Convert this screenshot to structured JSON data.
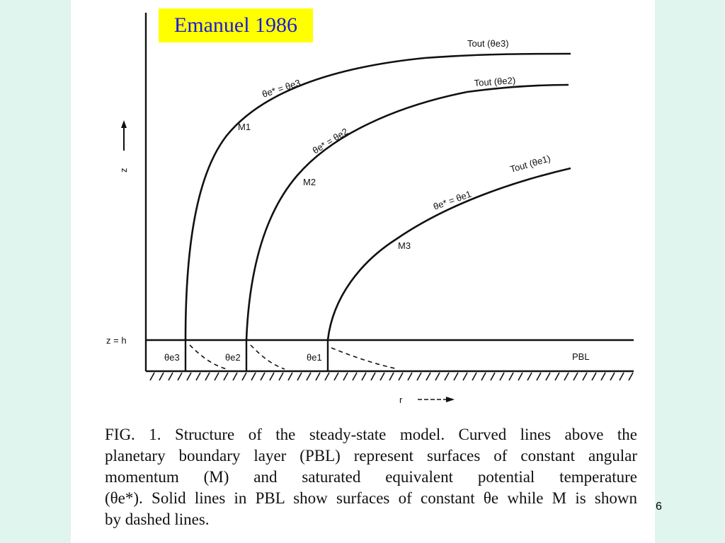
{
  "slide": {
    "title": "Emanuel 1986",
    "page_number": "6"
  },
  "figure": {
    "z_axis_label": "z",
    "r_axis_label": "r",
    "pbl_top_label": "z = h",
    "pbl_label": "PBL",
    "curve_labels": {
      "tout_e3": "Tout (θe3)",
      "tout_e2": "Tout (θe2)",
      "tout_e1": "Tout (θe1)",
      "theta_e3": "θe* = θe3",
      "theta_e2": "θe* = θe2",
      "theta_e1": "θe* = θe1",
      "m1": "M1",
      "m2": "M2",
      "m3": "M3"
    },
    "pbl_labels": {
      "e3": "θe3",
      "e2": "θe2",
      "e1": "θe1"
    }
  },
  "caption": {
    "line1": "FIG. 1. Structure of the steady-state model. Curved lines above the",
    "line2": "planetary boundary layer (PBL) represent surfaces of constant angular",
    "line3": "momentum (M) and saturated equivalent potential temperature",
    "line4": "(θe*). Solid lines in PBL show surfaces of constant θe while M is shown",
    "line5": "by dashed lines."
  }
}
